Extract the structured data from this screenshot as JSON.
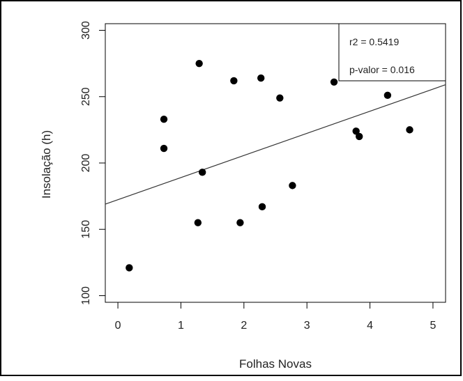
{
  "chart_data": {
    "type": "scatter",
    "title": "",
    "xlabel": "Folhas Novas",
    "ylabel": "Insolação (h)",
    "xlim": [
      -0.2,
      5.2
    ],
    "ylim": [
      95,
      305
    ],
    "xticks": [
      0,
      1,
      2,
      3,
      4,
      5
    ],
    "yticks": [
      100,
      150,
      200,
      250,
      300
    ],
    "grid": false,
    "legend": "top-right",
    "series": [
      {
        "points": [
          {
            "x": 0.18,
            "y": 121
          },
          {
            "x": 0.73,
            "y": 233
          },
          {
            "x": 0.73,
            "y": 211
          },
          {
            "x": 1.27,
            "y": 155
          },
          {
            "x": 1.29,
            "y": 275
          },
          {
            "x": 1.34,
            "y": 193
          },
          {
            "x": 1.84,
            "y": 262
          },
          {
            "x": 1.94,
            "y": 155
          },
          {
            "x": 2.27,
            "y": 264
          },
          {
            "x": 2.29,
            "y": 167
          },
          {
            "x": 2.57,
            "y": 249
          },
          {
            "x": 2.77,
            "y": 183
          },
          {
            "x": 3.43,
            "y": 261
          },
          {
            "x": 3.78,
            "y": 224
          },
          {
            "x": 3.83,
            "y": 220
          },
          {
            "x": 4.28,
            "y": 251
          },
          {
            "x": 4.63,
            "y": 225
          }
        ]
      }
    ],
    "regression_line": {
      "x": [
        -0.2,
        5.2
      ],
      "y": [
        169,
        259
      ]
    },
    "annotations": [
      "r2 = 0.5419",
      "p-valor = 0.016"
    ],
    "colors": {
      "points": "#000000",
      "line": "#333333",
      "frame": "#000000"
    }
  }
}
